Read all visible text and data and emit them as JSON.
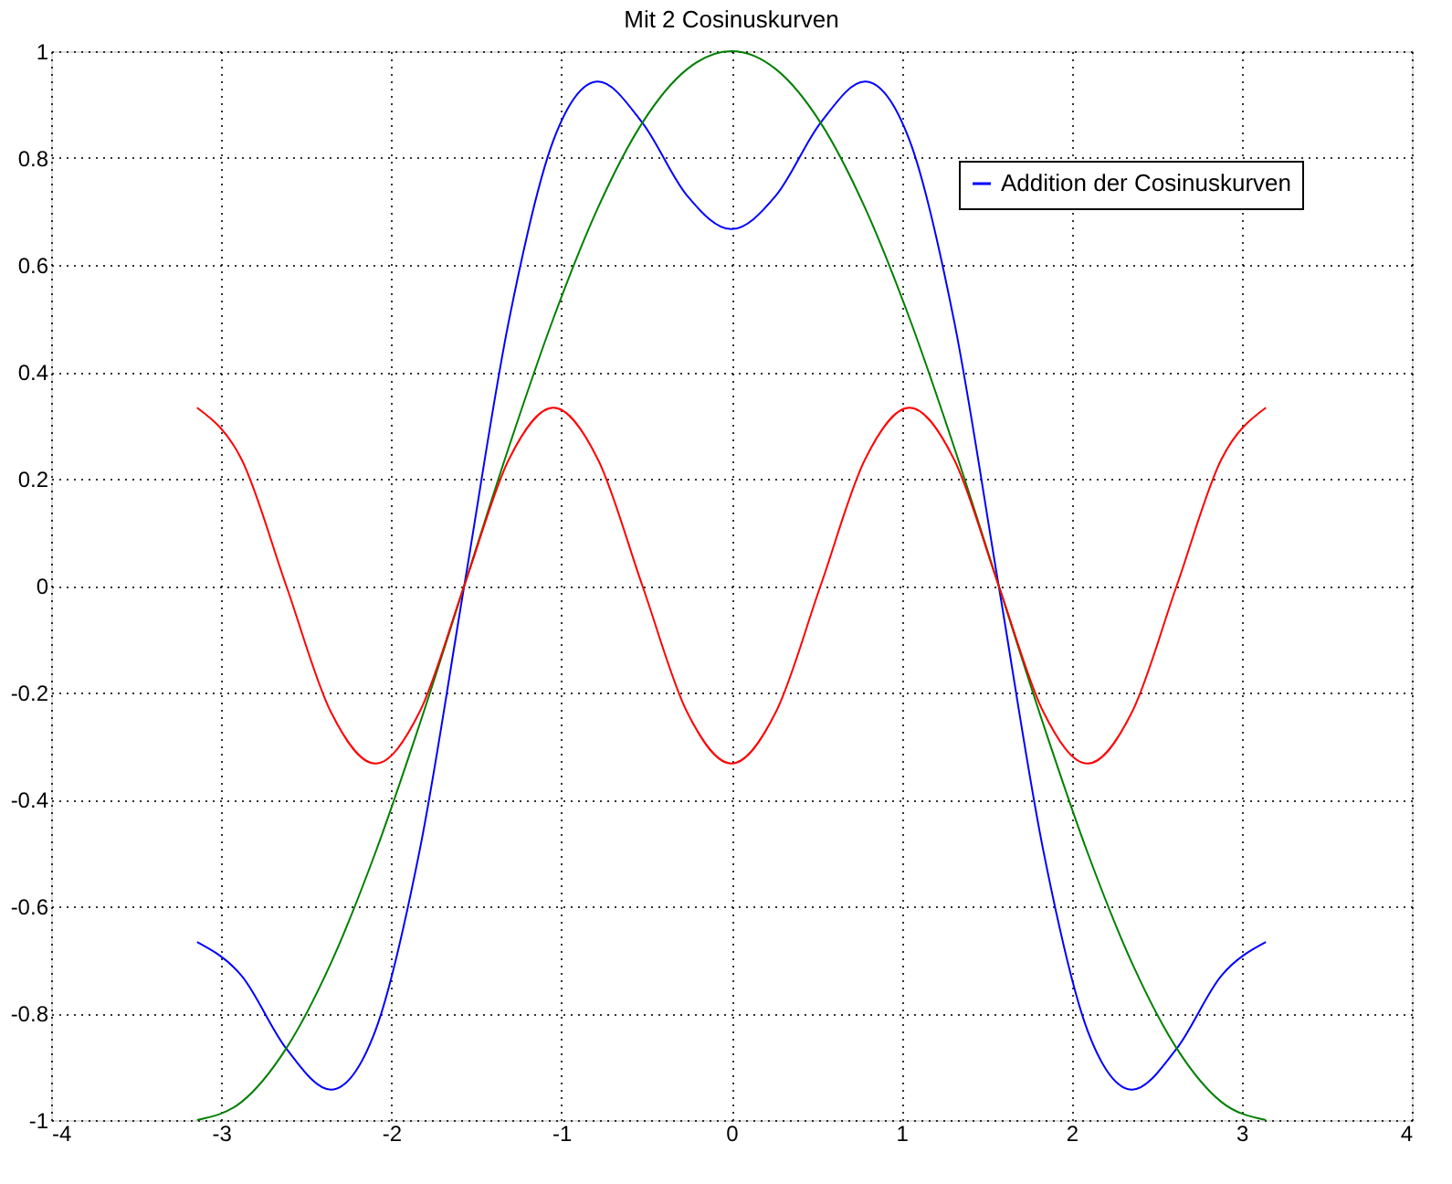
{
  "chart_data": {
    "type": "line",
    "title": "Mit 2 Cosinuskurven",
    "x": [
      -3.142,
      -2.88,
      -2.618,
      -2.356,
      -2.094,
      -1.833,
      -1.571,
      -1.309,
      -1.047,
      -0.785,
      -0.524,
      -0.262,
      0,
      0.262,
      0.524,
      0.785,
      1.047,
      1.309,
      1.571,
      1.833,
      2.094,
      2.356,
      2.618,
      2.88,
      3.142
    ],
    "series": [
      {
        "name": "Addition der Cosinuskurven",
        "color": "#0000ff",
        "values": [
          -0.667,
          -0.73,
          -0.866,
          -0.943,
          -0.833,
          -0.495,
          0,
          0.495,
          0.833,
          0.943,
          0.866,
          0.73,
          0.667,
          0.73,
          0.866,
          0.943,
          0.833,
          0.495,
          0,
          -0.495,
          -0.833,
          -0.943,
          -0.866,
          -0.73,
          -0.667
        ]
      },
      {
        "color": "#008000",
        "values": [
          -1,
          -0.966,
          -0.866,
          -0.707,
          -0.5,
          -0.259,
          0,
          0.259,
          0.5,
          0.707,
          0.866,
          0.966,
          1,
          0.966,
          0.866,
          0.707,
          0.5,
          0.259,
          0,
          -0.259,
          -0.5,
          -0.707,
          -0.866,
          -0.966,
          -1
        ]
      },
      {
        "color": "#ff0000",
        "values": [
          0.333,
          0.236,
          0,
          -0.236,
          -0.333,
          -0.236,
          0,
          0.236,
          0.333,
          0.236,
          0,
          -0.236,
          -0.333,
          -0.236,
          0,
          0.236,
          0.333,
          0.236,
          0,
          -0.236,
          -0.333,
          -0.236,
          0,
          0.236,
          0.333
        ]
      }
    ],
    "xlim": [
      -4,
      4
    ],
    "xticks": [
      -4,
      -3,
      -2,
      -1,
      0,
      1,
      2,
      3,
      4
    ],
    "ylim": [
      -1,
      1
    ],
    "yticks": [
      -1,
      -0.8,
      -0.6,
      -0.4,
      -0.2,
      0,
      0.2,
      0.4,
      0.6,
      0.8,
      1
    ],
    "grid": true,
    "legend": "top right",
    "line_style": "solid",
    "marker": "none"
  }
}
